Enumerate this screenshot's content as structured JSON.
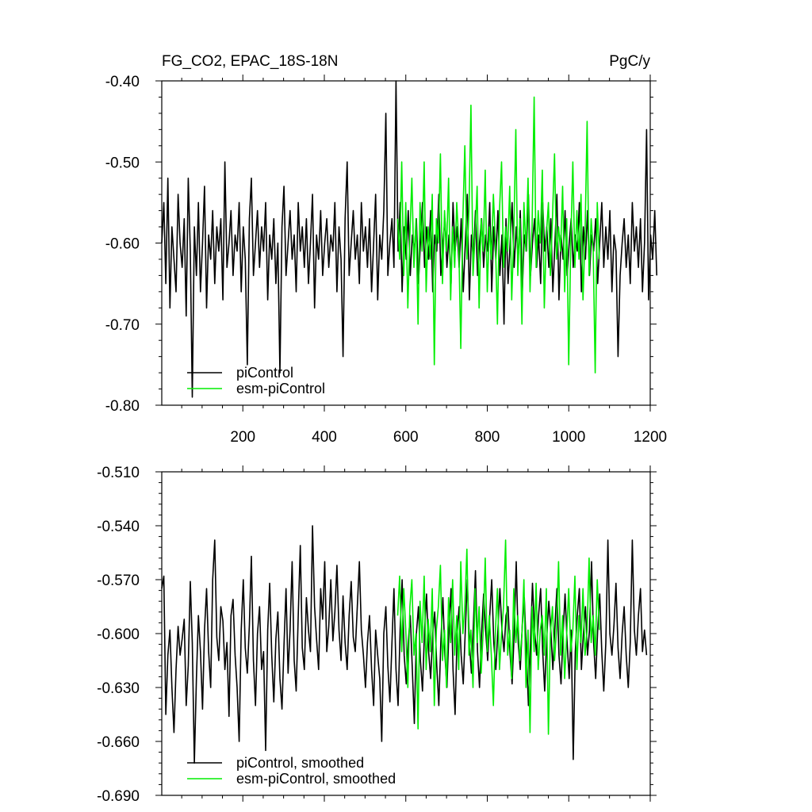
{
  "chart_data": [
    {
      "type": "line",
      "title": "FG_CO2, EPAC_18S-18N",
      "units": "PgC/y",
      "xlim": [
        1,
        1200
      ],
      "ylim": [
        -0.8,
        -0.4
      ],
      "xticks": [
        200,
        400,
        600,
        800,
        1000,
        1200
      ],
      "xtick_labels": [
        "200",
        "400",
        "600",
        "800",
        "1000",
        "1200"
      ],
      "yticks": [
        -0.8,
        -0.7,
        -0.6,
        -0.5,
        -0.4
      ],
      "ytick_labels": [
        "-0.80",
        "-0.70",
        "-0.60",
        "-0.50",
        "-0.40"
      ],
      "grid": false,
      "legend_position": "bottom-left",
      "series": [
        {
          "name": "piControl",
          "color": "#000000",
          "x_start": 1,
          "x_step": 5,
          "values": [
            -0.6,
            -0.55,
            -0.65,
            -0.52,
            -0.68,
            -0.58,
            -0.62,
            -0.66,
            -0.54,
            -0.6,
            -0.63,
            -0.57,
            -0.69,
            -0.52,
            -0.61,
            -0.79,
            -0.58,
            -0.64,
            -0.55,
            -0.66,
            -0.6,
            -0.53,
            -0.68,
            -0.59,
            -0.62,
            -0.56,
            -0.65,
            -0.58,
            -0.61,
            -0.57,
            -0.67,
            -0.5,
            -0.63,
            -0.6,
            -0.56,
            -0.64,
            -0.59,
            -0.61,
            -0.55,
            -0.66,
            -0.58,
            -0.62,
            -0.75,
            -0.57,
            -0.52,
            -0.64,
            -0.6,
            -0.56,
            -0.63,
            -0.58,
            -0.61,
            -0.55,
            -0.67,
            -0.59,
            -0.62,
            -0.57,
            -0.65,
            -0.6,
            -0.76,
            -0.58,
            -0.53,
            -0.64,
            -0.6,
            -0.56,
            -0.62,
            -0.59,
            -0.66,
            -0.55,
            -0.61,
            -0.58,
            -0.63,
            -0.57,
            -0.65,
            -0.6,
            -0.54,
            -0.68,
            -0.59,
            -0.62,
            -0.56,
            -0.64,
            -0.6,
            -0.57,
            -0.63,
            -0.59,
            -0.61,
            -0.55,
            -0.66,
            -0.58,
            -0.62,
            -0.74,
            -0.57,
            -0.5,
            -0.64,
            -0.6,
            -0.56,
            -0.62,
            -0.59,
            -0.65,
            -0.55,
            -0.61,
            -0.58,
            -0.63,
            -0.57,
            -0.66,
            -0.6,
            -0.54,
            -0.67,
            -0.59,
            -0.62,
            -0.56,
            -0.44,
            -0.64,
            -0.6,
            -0.57,
            -0.63,
            -0.4,
            -0.61,
            -0.55,
            -0.66,
            -0.58,
            -0.62,
            -0.56,
            -0.64,
            -0.59,
            -0.61,
            -0.57,
            -0.65,
            -0.6,
            -0.55,
            -0.63,
            -0.58,
            -0.62,
            -0.56,
            -0.66,
            -0.59,
            -0.61,
            -0.54,
            -0.64,
            -0.6,
            -0.57,
            -0.63,
            -0.59,
            -0.65,
            -0.55,
            -0.61,
            -0.58,
            -0.63,
            -0.57,
            -0.66,
            -0.6,
            -0.54,
            -0.67,
            -0.59,
            -0.62,
            -0.56,
            -0.64,
            -0.6,
            -0.57,
            -0.63,
            -0.59,
            -0.61,
            -0.55,
            -0.66,
            -0.58,
            -0.62,
            -0.56,
            -0.64,
            -0.59,
            -0.7,
            -0.57,
            -0.65,
            -0.6,
            -0.55,
            -0.63,
            -0.58,
            -0.62,
            -0.56,
            -0.66,
            -0.59,
            -0.61,
            -0.54,
            -0.64,
            -0.6,
            -0.57,
            -0.63,
            -0.59,
            -0.65,
            -0.55,
            -0.61,
            -0.58,
            -0.63,
            -0.57,
            -0.66,
            -0.6,
            -0.54,
            -0.67,
            -0.59,
            -0.62,
            -0.56,
            -0.64,
            -0.6,
            -0.57,
            -0.63,
            -0.59,
            -0.61,
            -0.55,
            -0.66,
            -0.58,
            -0.62,
            -0.56,
            -0.64,
            -0.59,
            -0.61,
            -0.57,
            -0.65,
            -0.6,
            -0.55,
            -0.63,
            -0.58,
            -0.62,
            -0.56,
            -0.66,
            -0.59,
            -0.61,
            -0.74,
            -0.64,
            -0.6,
            -0.57,
            -0.63,
            -0.59,
            -0.65,
            -0.55,
            -0.61,
            -0.58,
            -0.63,
            -0.57,
            -0.66,
            -0.6,
            -0.46,
            -0.67,
            -0.59,
            -0.62,
            -0.56,
            -0.64
          ]
        },
        {
          "name": "esm-piControl",
          "color": "#00ee00",
          "x_start": 580,
          "x_step": 5,
          "values": [
            -0.57,
            -0.62,
            -0.5,
            -0.64,
            -0.55,
            -0.68,
            -0.59,
            -0.52,
            -0.63,
            -0.57,
            -0.7,
            -0.55,
            -0.61,
            -0.5,
            -0.66,
            -0.58,
            -0.62,
            -0.54,
            -0.75,
            -0.57,
            -0.6,
            -0.49,
            -0.65,
            -0.56,
            -0.61,
            -0.52,
            -0.67,
            -0.58,
            -0.63,
            -0.55,
            -0.6,
            -0.73,
            -0.57,
            -0.48,
            -0.62,
            -0.56,
            -0.43,
            -0.64,
            -0.59,
            -0.53,
            -0.68,
            -0.57,
            -0.61,
            -0.51,
            -0.66,
            -0.58,
            -0.62,
            -0.54,
            -0.6,
            -0.7,
            -0.56,
            -0.5,
            -0.63,
            -0.58,
            -0.61,
            -0.53,
            -0.67,
            -0.59,
            -0.46,
            -0.64,
            -0.57,
            -0.7,
            -0.55,
            -0.61,
            -0.52,
            -0.66,
            -0.58,
            -0.42,
            -0.63,
            -0.56,
            -0.6,
            -0.51,
            -0.68,
            -0.59,
            -0.55,
            -0.64,
            -0.57,
            -0.49,
            -0.62,
            -0.58,
            -0.61,
            -0.53,
            -0.66,
            -0.57,
            -0.75,
            -0.6,
            -0.5,
            -0.63,
            -0.56,
            -0.62,
            -0.54,
            -0.67,
            -0.59,
            -0.45,
            -0.64,
            -0.57,
            -0.61,
            -0.76,
            -0.55,
            -0.62
          ]
        }
      ]
    },
    {
      "type": "line",
      "xlim": [
        1,
        1200
      ],
      "ylim": [
        -0.69,
        -0.51
      ],
      "yticks": [
        -0.69,
        -0.66,
        -0.63,
        -0.6,
        -0.57,
        -0.54,
        -0.51
      ],
      "ytick_labels": [
        "-0.690",
        "-0.660",
        "-0.630",
        "-0.600",
        "-0.570",
        "-0.540",
        "-0.510"
      ],
      "grid": false,
      "legend_position": "bottom-left",
      "series": [
        {
          "name": "piControl, smoothed",
          "color": "#000000",
          "x_start": 1,
          "x_step": 5,
          "values": [
            -0.575,
            -0.568,
            -0.645,
            -0.612,
            -0.598,
            -0.63,
            -0.655,
            -0.62,
            -0.596,
            -0.612,
            -0.603,
            -0.592,
            -0.64,
            -0.618,
            -0.571,
            -0.605,
            -0.672,
            -0.625,
            -0.59,
            -0.61,
            -0.642,
            -0.598,
            -0.575,
            -0.61,
            -0.63,
            -0.57,
            -0.548,
            -0.602,
            -0.615,
            -0.585,
            -0.593,
            -0.62,
            -0.605,
            -0.646,
            -0.59,
            -0.581,
            -0.612,
            -0.63,
            -0.66,
            -0.598,
            -0.57,
            -0.608,
            -0.622,
            -0.595,
            -0.557,
            -0.615,
            -0.64,
            -0.6,
            -0.585,
            -0.62,
            -0.61,
            -0.665,
            -0.598,
            -0.572,
            -0.612,
            -0.638,
            -0.603,
            -0.588,
            -0.625,
            -0.642,
            -0.607,
            -0.575,
            -0.622,
            -0.598,
            -0.56,
            -0.615,
            -0.632,
            -0.59,
            -0.551,
            -0.608,
            -0.62,
            -0.58,
            -0.598,
            -0.61,
            -0.54,
            -0.585,
            -0.603,
            -0.62,
            -0.575,
            -0.592,
            -0.56,
            -0.61,
            -0.596,
            -0.57,
            -0.604,
            -0.588,
            -0.562,
            -0.598,
            -0.615,
            -0.579,
            -0.605,
            -0.62,
            -0.59,
            -0.571,
            -0.602,
            -0.61,
            -0.585,
            -0.56,
            -0.598,
            -0.612,
            -0.63,
            -0.605,
            -0.59,
            -0.62,
            -0.64,
            -0.598,
            -0.612,
            -0.625,
            -0.66,
            -0.6,
            -0.585,
            -0.618,
            -0.638,
            -0.605,
            -0.575,
            -0.62,
            -0.64,
            -0.598,
            -0.57,
            -0.612,
            -0.628,
            -0.605,
            -0.59,
            -0.62,
            -0.65,
            -0.6,
            -0.585,
            -0.615,
            -0.632,
            -0.598,
            -0.578,
            -0.61,
            -0.625,
            -0.6,
            -0.588,
            -0.618,
            -0.64,
            -0.605,
            -0.58,
            -0.612,
            -0.63,
            -0.598,
            -0.575,
            -0.62,
            -0.645,
            -0.6,
            -0.585,
            -0.612,
            -0.628,
            -0.598,
            -0.57,
            -0.605,
            -0.622,
            -0.595,
            -0.565,
            -0.61,
            -0.63,
            -0.6,
            -0.578,
            -0.598,
            -0.615,
            -0.59,
            -0.57,
            -0.605,
            -0.62,
            -0.598,
            -0.575,
            -0.598,
            -0.61,
            -0.59,
            -0.585,
            -0.612,
            -0.628,
            -0.6,
            -0.56,
            -0.605,
            -0.62,
            -0.595,
            -0.58,
            -0.61,
            -0.64,
            -0.605,
            -0.572,
            -0.598,
            -0.612,
            -0.59,
            -0.575,
            -0.61,
            -0.632,
            -0.602,
            -0.582,
            -0.598,
            -0.62,
            -0.596,
            -0.575,
            -0.612,
            -0.628,
            -0.6,
            -0.578,
            -0.605,
            -0.625,
            -0.598,
            -0.67,
            -0.61,
            -0.59,
            -0.575,
            -0.62,
            -0.6,
            -0.585,
            -0.612,
            -0.598,
            -0.56,
            -0.605,
            -0.625,
            -0.598,
            -0.578,
            -0.61,
            -0.632,
            -0.605,
            -0.548,
            -0.6,
            -0.612,
            -0.595,
            -0.572,
            -0.608,
            -0.625,
            -0.6,
            -0.585,
            -0.612,
            -0.63,
            -0.605,
            -0.548,
            -0.598,
            -0.612,
            -0.59,
            -0.575,
            -0.61,
            -0.598,
            -0.612
          ]
        },
        {
          "name": "esm-piControl, smoothed",
          "color": "#00ee00",
          "x_start": 580,
          "x_step": 5,
          "values": [
            -0.59,
            -0.568,
            -0.61,
            -0.575,
            -0.598,
            -0.63,
            -0.585,
            -0.57,
            -0.612,
            -0.6,
            -0.653,
            -0.582,
            -0.605,
            -0.568,
            -0.62,
            -0.592,
            -0.61,
            -0.575,
            -0.64,
            -0.598,
            -0.585,
            -0.562,
            -0.615,
            -0.598,
            -0.63,
            -0.58,
            -0.605,
            -0.57,
            -0.612,
            -0.59,
            -0.62,
            -0.56,
            -0.6,
            -0.585,
            -0.553,
            -0.612,
            -0.598,
            -0.63,
            -0.575,
            -0.605,
            -0.585,
            -0.622,
            -0.598,
            -0.558,
            -0.61,
            -0.59,
            -0.612,
            -0.64,
            -0.598,
            -0.575,
            -0.62,
            -0.6,
            -0.585,
            -0.548,
            -0.612,
            -0.598,
            -0.625,
            -0.575,
            -0.605,
            -0.59,
            -0.615,
            -0.6,
            -0.57,
            -0.63,
            -0.598,
            -0.655,
            -0.585,
            -0.61,
            -0.572,
            -0.62,
            -0.598,
            -0.59,
            -0.612,
            -0.575,
            -0.656,
            -0.6,
            -0.585,
            -0.615,
            -0.598,
            -0.56,
            -0.612,
            -0.59,
            -0.625,
            -0.6,
            -0.575,
            -0.61,
            -0.598,
            -0.568,
            -0.62,
            -0.59,
            -0.605,
            -0.575,
            -0.612,
            -0.598,
            -0.558,
            -0.605,
            -0.59,
            -0.612,
            -0.57,
            -0.598
          ]
        }
      ]
    }
  ]
}
